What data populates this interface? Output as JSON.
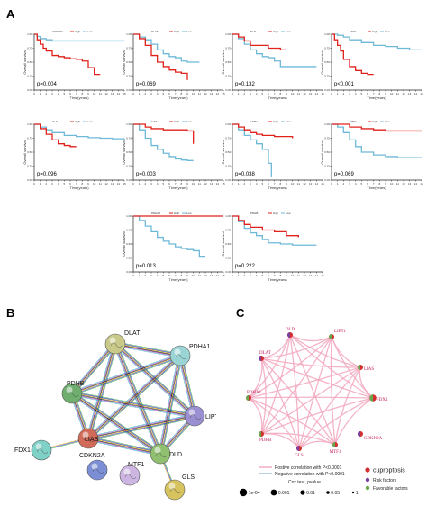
{
  "labels": {
    "a": "A",
    "b": "B",
    "c": "C"
  },
  "km_axis": {
    "ylabel": "Overall survival",
    "xlabel": "Time(years)",
    "yticks": [
      "1.00",
      "0.75",
      "0.50",
      "0.25",
      "0.00"
    ],
    "xticks": [
      "0",
      "1",
      "2",
      "3",
      "4",
      "5",
      "6",
      "7",
      "8",
      "9",
      "10",
      "11",
      "12",
      "13",
      "14",
      "15"
    ],
    "legend_high": "High",
    "legend_low": "Low"
  },
  "colors": {
    "high": "#e0221c",
    "low": "#6fb9d8",
    "edge_pos": "#f2a7bd",
    "edge_neg": "#9bbbd9"
  },
  "chart_data": [
    {
      "type": "line",
      "gene": "CDKN2A",
      "pvalue": "p=0.004",
      "xlim": [
        0,
        15
      ],
      "ylim": [
        0,
        1
      ],
      "series": [
        {
          "name": "High",
          "x": [
            0,
            0.5,
            1,
            1.5,
            2,
            3,
            4,
            5,
            6,
            7,
            8,
            9,
            10,
            11
          ],
          "y": [
            1,
            0.9,
            0.82,
            0.75,
            0.7,
            0.62,
            0.6,
            0.58,
            0.56,
            0.55,
            0.52,
            0.4,
            0.28,
            0.28
          ]
        },
        {
          "name": "Low",
          "x": [
            0,
            0.5,
            1,
            2,
            3,
            15
          ],
          "y": [
            1,
            0.96,
            0.92,
            0.9,
            0.88,
            0.88
          ]
        }
      ]
    },
    {
      "type": "line",
      "gene": "DLAT",
      "pvalue": "p=0.069",
      "xlim": [
        0,
        15
      ],
      "ylim": [
        0,
        1
      ],
      "series": [
        {
          "name": "High",
          "x": [
            0,
            1,
            2,
            3,
            4,
            5,
            6,
            7,
            8,
            9
          ],
          "y": [
            1,
            0.92,
            0.8,
            0.62,
            0.5,
            0.42,
            0.36,
            0.32,
            0.3,
            0.18
          ]
        },
        {
          "name": "Low",
          "x": [
            0,
            1,
            2,
            3,
            4,
            5,
            6,
            7,
            8,
            9,
            10,
            11
          ],
          "y": [
            1,
            0.95,
            0.9,
            0.82,
            0.72,
            0.65,
            0.6,
            0.58,
            0.52,
            0.5,
            0.5,
            0.5
          ]
        }
      ]
    },
    {
      "type": "line",
      "gene": "DLD",
      "pvalue": "p=0.132",
      "xlim": [
        0,
        15
      ],
      "ylim": [
        0,
        1
      ],
      "series": [
        {
          "name": "High",
          "x": [
            0,
            1,
            2,
            3,
            4,
            6,
            7,
            8,
            9
          ],
          "y": [
            1,
            0.95,
            0.88,
            0.8,
            0.8,
            0.75,
            0.75,
            0.72,
            0.72
          ]
        },
        {
          "name": "Low",
          "x": [
            0,
            1,
            2,
            3,
            4,
            5,
            6,
            7,
            8,
            11,
            14
          ],
          "y": [
            1,
            0.92,
            0.82,
            0.72,
            0.65,
            0.6,
            0.58,
            0.52,
            0.42,
            0.42,
            0.42
          ]
        }
      ]
    },
    {
      "type": "line",
      "gene": "FDX1",
      "pvalue": "p<0.001",
      "xlim": [
        0,
        15
      ],
      "ylim": [
        0,
        1
      ],
      "series": [
        {
          "name": "High",
          "x": [
            0,
            0.5,
            1,
            1.5,
            2,
            3,
            4,
            5,
            6,
            7
          ],
          "y": [
            1,
            0.9,
            0.8,
            0.7,
            0.55,
            0.42,
            0.35,
            0.3,
            0.28,
            0.28
          ]
        },
        {
          "name": "Low",
          "x": [
            0,
            1,
            2,
            3,
            5,
            7,
            9,
            11,
            13,
            15
          ],
          "y": [
            1,
            0.98,
            0.95,
            0.9,
            0.85,
            0.8,
            0.78,
            0.75,
            0.72,
            0.72
          ]
        }
      ]
    },
    {
      "type": "line",
      "gene": "GLS",
      "pvalue": "p=0.096",
      "xlim": [
        0,
        15
      ],
      "ylim": [
        0,
        1
      ],
      "series": [
        {
          "name": "High",
          "x": [
            0,
            1,
            2,
            3,
            4,
            5,
            6,
            7
          ],
          "y": [
            1,
            0.92,
            0.82,
            0.72,
            0.65,
            0.62,
            0.6,
            0.6
          ]
        },
        {
          "name": "Low",
          "x": [
            0,
            1,
            2,
            3,
            5,
            7,
            9,
            11,
            13,
            15
          ],
          "y": [
            1,
            0.95,
            0.9,
            0.85,
            0.8,
            0.78,
            0.76,
            0.75,
            0.74,
            0.72
          ]
        }
      ]
    },
    {
      "type": "line",
      "gene": "LIAS",
      "pvalue": "p=0.003",
      "xlim": [
        0,
        15
      ],
      "ylim": [
        0,
        1
      ],
      "series": [
        {
          "name": "High",
          "x": [
            0,
            1,
            2,
            3,
            5,
            7,
            9,
            10
          ],
          "y": [
            1,
            1,
            0.95,
            0.92,
            0.9,
            0.9,
            0.88,
            0.65
          ]
        },
        {
          "name": "Low",
          "x": [
            0,
            1,
            2,
            3,
            4,
            5,
            6,
            7,
            8,
            9,
            10
          ],
          "y": [
            1,
            0.9,
            0.75,
            0.62,
            0.55,
            0.48,
            0.42,
            0.38,
            0.36,
            0.35,
            0.35
          ]
        }
      ]
    },
    {
      "type": "line",
      "gene": "LIPT1",
      "pvalue": "p=0.038",
      "xlim": [
        0,
        15
      ],
      "ylim": [
        0,
        1
      ],
      "series": [
        {
          "name": "High",
          "x": [
            0,
            1,
            2,
            3,
            4,
            5,
            7,
            9,
            10
          ],
          "y": [
            1,
            0.95,
            0.9,
            0.85,
            0.82,
            0.8,
            0.78,
            0.78,
            0.75
          ]
        },
        {
          "name": "Low",
          "x": [
            0,
            1,
            2,
            3,
            4,
            5,
            6,
            6.5
          ],
          "y": [
            1,
            0.9,
            0.8,
            0.72,
            0.65,
            0.55,
            0.3,
            0.05
          ]
        }
      ]
    },
    {
      "type": "line",
      "gene": "MTF1",
      "pvalue": "p=0.069",
      "xlim": [
        0,
        15
      ],
      "ylim": [
        0,
        1
      ],
      "series": [
        {
          "name": "High",
          "x": [
            0,
            2,
            3,
            5,
            7,
            9,
            11,
            13,
            15
          ],
          "y": [
            1,
            1,
            0.95,
            0.92,
            0.9,
            0.88,
            0.88,
            0.88,
            0.88
          ]
        },
        {
          "name": "Low",
          "x": [
            0,
            1,
            2,
            3,
            4,
            5,
            7,
            9,
            11,
            15
          ],
          "y": [
            1,
            0.95,
            0.85,
            0.72,
            0.6,
            0.5,
            0.45,
            0.42,
            0.4,
            0.4
          ]
        }
      ]
    },
    {
      "type": "line",
      "gene": "PDHA1",
      "pvalue": "p=0.013",
      "xlim": [
        0,
        15
      ],
      "ylim": [
        0,
        1
      ],
      "series": [
        {
          "name": "High",
          "x": [
            0,
            15
          ],
          "y": [
            1,
            1
          ]
        },
        {
          "name": "Low",
          "x": [
            0,
            1,
            2,
            3,
            4,
            5,
            6,
            7,
            8,
            9,
            10,
            11,
            12
          ],
          "y": [
            1,
            0.92,
            0.82,
            0.72,
            0.62,
            0.55,
            0.5,
            0.45,
            0.42,
            0.4,
            0.38,
            0.28,
            0.28
          ]
        }
      ]
    },
    {
      "type": "line",
      "gene": "PDHB",
      "pvalue": "p=0.222",
      "xlim": [
        0,
        15
      ],
      "ylim": [
        0,
        1
      ],
      "series": [
        {
          "name": "High",
          "x": [
            0,
            1,
            2,
            3,
            5,
            7,
            9,
            11
          ],
          "y": [
            1,
            0.92,
            0.85,
            0.8,
            0.75,
            0.72,
            0.65,
            0.62
          ]
        },
        {
          "name": "Low",
          "x": [
            0,
            1,
            2,
            3,
            4,
            5,
            6,
            8,
            10,
            12,
            14
          ],
          "y": [
            1,
            0.9,
            0.78,
            0.7,
            0.65,
            0.58,
            0.52,
            0.5,
            0.48,
            0.48,
            0.48
          ]
        }
      ]
    }
  ],
  "network_b": {
    "nodes": [
      {
        "id": "DLAT",
        "label": "DLAT",
        "color": "#c9c98a"
      },
      {
        "id": "PDHA1",
        "label": "PDHA1",
        "color": "#9bd4d4"
      },
      {
        "id": "PDHB",
        "label": "PDHB",
        "color": "#6fae6f"
      },
      {
        "id": "LIPT1",
        "label": "LIPT1",
        "color": "#9a8fd0"
      },
      {
        "id": "LIAS",
        "label": "LIAS",
        "color": "#d26a5a"
      },
      {
        "id": "FDX1",
        "label": "FDX1",
        "color": "#7fd0c7"
      },
      {
        "id": "DLD",
        "label": "DLD",
        "color": "#8fbf6f"
      },
      {
        "id": "CDKN2A",
        "label": "CDKN2A",
        "color": "#7c8fd6"
      },
      {
        "id": "MTF1",
        "label": "MTF1",
        "color": "#cdb5e2"
      },
      {
        "id": "GLS",
        "label": "GLS",
        "color": "#d6c35e"
      }
    ],
    "edges": [
      [
        "DLAT",
        "PDHA1"
      ],
      [
        "DLAT",
        "PDHB"
      ],
      [
        "DLAT",
        "LIPT1"
      ],
      [
        "DLAT",
        "LIAS"
      ],
      [
        "DLAT",
        "DLD"
      ],
      [
        "PDHA1",
        "PDHB"
      ],
      [
        "PDHA1",
        "LIPT1"
      ],
      [
        "PDHA1",
        "LIAS"
      ],
      [
        "PDHA1",
        "DLD"
      ],
      [
        "PDHB",
        "LIAS"
      ],
      [
        "PDHB",
        "DLD"
      ],
      [
        "PDHB",
        "LIPT1"
      ],
      [
        "LIPT1",
        "LIAS"
      ],
      [
        "LIPT1",
        "DLD"
      ],
      [
        "LIAS",
        "DLD"
      ],
      [
        "LIAS",
        "FDX1"
      ],
      [
        "DLD",
        "GLS"
      ]
    ]
  },
  "network_c": {
    "nodes": [
      {
        "id": "DLD",
        "label": "DLD",
        "type": "risk"
      },
      {
        "id": "LIPT1",
        "label": "LIPT1",
        "type": "favorable"
      },
      {
        "id": "DLAT",
        "label": "DLAT",
        "type": "risk"
      },
      {
        "id": "LIAS",
        "label": "LIAS",
        "type": "favorable"
      },
      {
        "id": "PDHA1",
        "label": "PDHA1",
        "type": "favorable"
      },
      {
        "id": "FDX1",
        "label": "FDX1",
        "type": "favorable"
      },
      {
        "id": "PDHB",
        "label": "PDHB",
        "type": "favorable"
      },
      {
        "id": "CDKN2A",
        "label": "CDKN2A",
        "type": "risk"
      },
      {
        "id": "GLS",
        "label": "GLS",
        "type": "risk"
      },
      {
        "id": "MTF1",
        "label": "MTF1",
        "type": "favorable"
      }
    ],
    "legend": {
      "pos": "Postive correlation with P<0.0001",
      "neg": "Negative correlation with P<0.0001",
      "cox_title": "Cox test, pvalue",
      "cox_ticks": [
        "1e-04",
        "0.001",
        "0.01",
        "0.05",
        "1"
      ],
      "cuproptosis": "cuproptosis",
      "risk": "Risk factors",
      "favorable": "Favorable factors",
      "risk_color": "#7b3fa0",
      "favorable_color": "#6aa84f",
      "cupro_color": "#d32f2f"
    }
  }
}
